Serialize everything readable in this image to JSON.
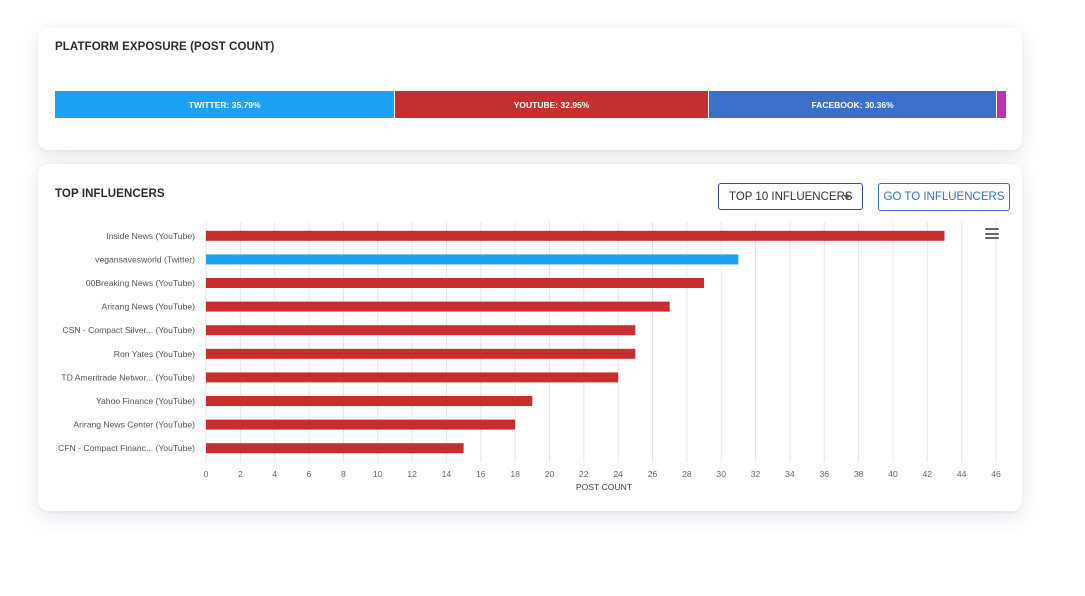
{
  "platform_card": {
    "title": "PLATFORM EXPOSURE (POST COUNT)",
    "segments": [
      {
        "label": "TWITTER: 35.79%",
        "value": 35.79,
        "color": "#1da1f2"
      },
      {
        "label": "YOUTUBE: 32.95%",
        "value": 32.95,
        "color": "#c62f2f"
      },
      {
        "label": "FACEBOOK: 30.36%",
        "value": 30.36,
        "color": "#3b6fc9"
      },
      {
        "label": "",
        "value": 0.9,
        "color": "#c02fb4"
      }
    ]
  },
  "influencers_card": {
    "title": "TOP INFLUENCERS",
    "select_value": "TOP 10 INFLUENCERS",
    "button_label": "GO TO INFLUENCERS",
    "menu_icon": "hamburger-menu-icon"
  },
  "colors": {
    "youtube": "#c62f2f",
    "twitter": "#1da1f2"
  },
  "chart_data": {
    "type": "bar",
    "orientation": "horizontal",
    "categories": [
      "Inside News (YouTube)",
      "vegansavesworld (Twitter)",
      "00Breaking News (YouTube)",
      "Arirang News (YouTube)",
      "CSN - Compact Silver... (YouTube)",
      "Ron Yates (YouTube)",
      "TD Ameritrade Networ... (YouTube)",
      "Yahoo Finance (YouTube)",
      "Arirang News Center (YouTube)",
      "CFN - Compact Financ... (YouTube)"
    ],
    "values": [
      43,
      31,
      29,
      27,
      25,
      25,
      24,
      19,
      18,
      15
    ],
    "platforms": [
      "youtube",
      "twitter",
      "youtube",
      "youtube",
      "youtube",
      "youtube",
      "youtube",
      "youtube",
      "youtube",
      "youtube"
    ],
    "xlabel": "POST COUNT",
    "xlim": [
      0,
      46
    ],
    "xticks": [
      0,
      2,
      4,
      6,
      8,
      10,
      12,
      14,
      16,
      18,
      20,
      22,
      24,
      26,
      28,
      30,
      32,
      34,
      36,
      38,
      40,
      42,
      44,
      46
    ],
    "grid": true
  }
}
